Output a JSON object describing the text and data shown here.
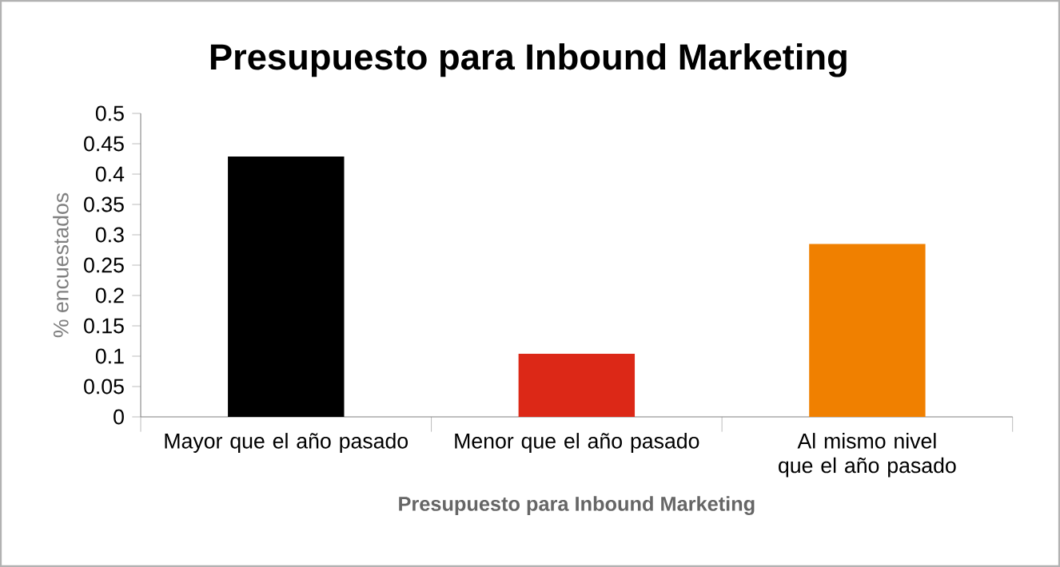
{
  "chart_data": {
    "type": "bar",
    "title": "Presupuesto para Inbound Marketing",
    "xlabel": "Presupuesto para Inbound Marketing",
    "ylabel": "% encuestados",
    "categories": [
      "Mayor que el año pasado",
      "Menor que el año pasado",
      "Al mismo nivel que el año pasado"
    ],
    "values": [
      0.429,
      0.104,
      0.285
    ],
    "colors": [
      "#000000",
      "#dc2817",
      "#f08000"
    ],
    "ylim": [
      0,
      0.5
    ],
    "yticks": [
      0,
      0.05,
      0.1,
      0.15,
      0.2,
      0.25,
      0.3,
      0.35,
      0.4,
      0.45,
      0.5
    ]
  }
}
